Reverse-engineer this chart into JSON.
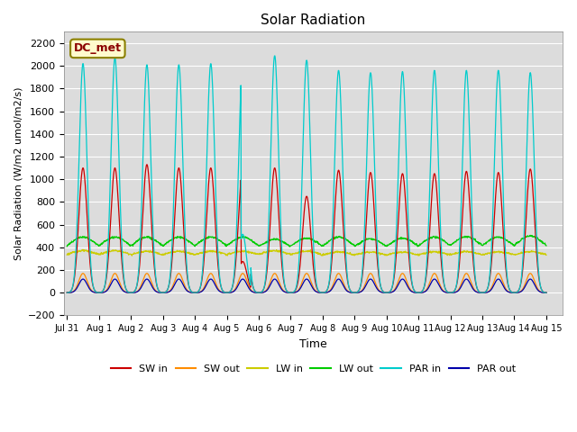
{
  "title": "Solar Radiation",
  "ylabel": "Solar Radiation (W/m2 umol/m2/s)",
  "xlabel": "Time",
  "ylim": [
    -200,
    2300
  ],
  "annotation_text": "DC_met",
  "annotation_color": "#8B0000",
  "annotation_bg": "#FFFACD",
  "annotation_edge": "#8B8000",
  "bg_color": "#DCDCDC",
  "tick_labels": [
    "Jul 31",
    "Aug 1",
    "Aug 2",
    "Aug 3",
    "Aug 4",
    "Aug 5",
    "Aug 6",
    "Aug 7",
    "Aug 8",
    "Aug 9",
    "Aug 10",
    "Aug 11",
    "Aug 12",
    "Aug 13",
    "Aug 14",
    "Aug 15"
  ],
  "tick_positions": [
    0,
    1,
    2,
    3,
    4,
    5,
    6,
    7,
    8,
    9,
    10,
    11,
    12,
    13,
    14,
    15
  ],
  "SW_in_color": "#CC0000",
  "SW_out_color": "#FF8C00",
  "LW_in_color": "#CCCC00",
  "LW_out_color": "#00CC00",
  "PAR_in_color": "#00CCCC",
  "PAR_out_color": "#0000AA"
}
